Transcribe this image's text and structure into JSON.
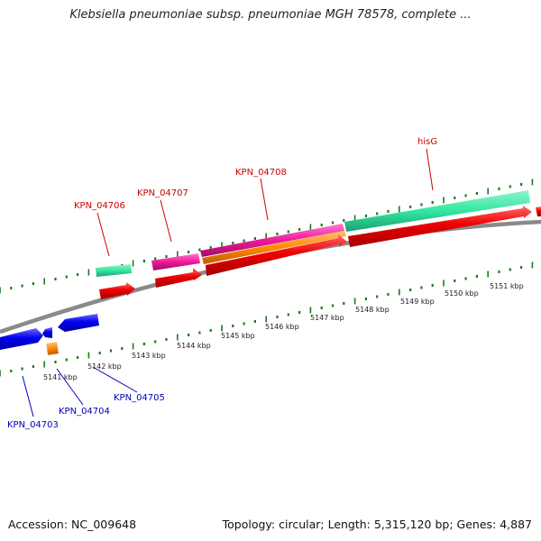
{
  "title": "Klebsiella pneumoniae subsp. pneumoniae MGH 78578, complete ...",
  "accession": "Accession: NC_009648",
  "stats": "Topology: circular; Length: 5,315,120 bp; Genes: 4,887",
  "bp_labels": [
    "5141 kbp",
    "5142 kbp",
    "5143 kbp",
    "5144 kbp",
    "5145 kbp",
    "5146 kbp",
    "5147 kbp",
    "5148 kbp",
    "5149 kbp",
    "5150 kbp",
    "5151 kbp"
  ],
  "gene_labels": {
    "forward": [
      "KPN_04706",
      "KPN_04707",
      "KPN_04708",
      "hisG"
    ],
    "reverse": [
      "KPN_04703",
      "KPN_04704",
      "KPN_04705"
    ]
  },
  "colors": {
    "forward_label": "#cc0000",
    "reverse_label": "#0000bb",
    "backbone": "#888888",
    "ticks": "#1a7a1a",
    "gene_seafoam": "#33e6a0",
    "gene_magenta": "#ee1a9a",
    "gene_orange": "#ff8a00",
    "cds_red": "#ee0000",
    "cds_blue": "#0000ee"
  }
}
